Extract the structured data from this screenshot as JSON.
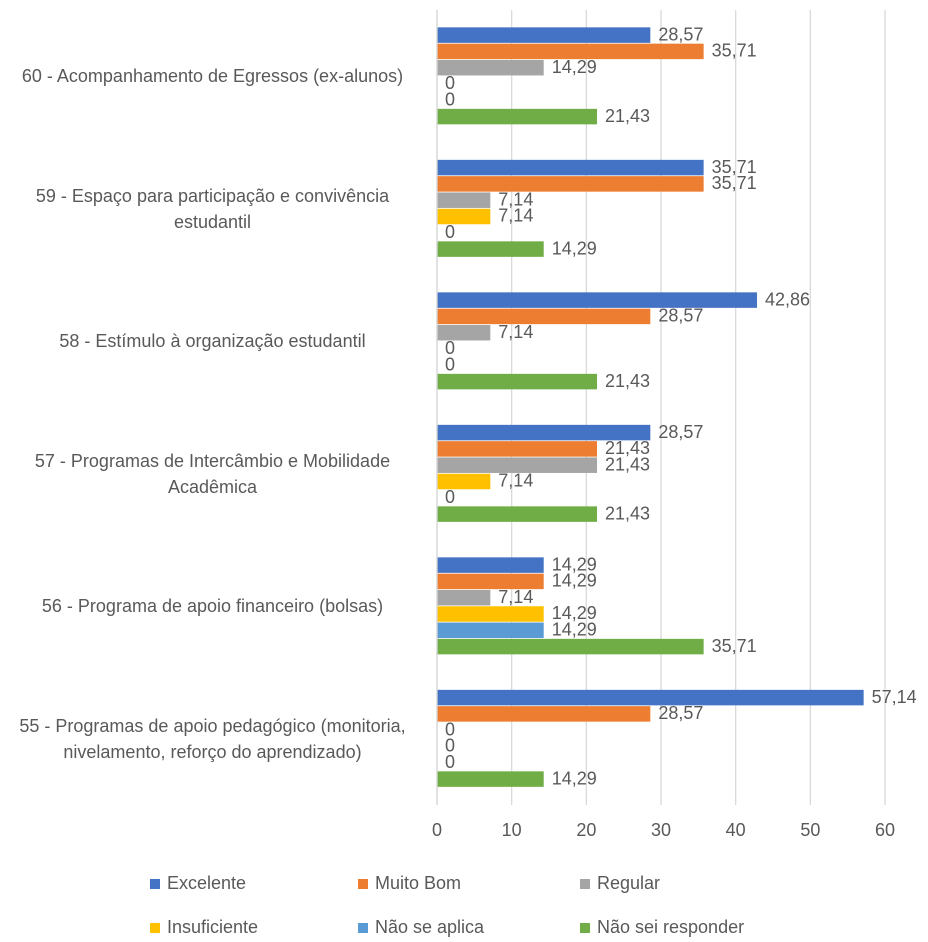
{
  "chart_data": {
    "type": "hbar",
    "categories": [
      "60 - Acompanhamento de Egressos (ex-alunos)",
      "59 - Espaço para participação e convivência estudantil",
      "58 - Estímulo à organização estudantil",
      "57 - Programas de Intercâmbio e Mobilidade Acadêmica",
      "56 - Programa de apoio financeiro (bolsas)",
      "55 - Programas de apoio pedagógico (monitoria, nivelamento, reforço do aprendizado)"
    ],
    "series": [
      {
        "name": "Excelente",
        "color": "#4472c4",
        "values": [
          28.57,
          35.71,
          42.86,
          28.57,
          14.29,
          57.14
        ],
        "value_labels": [
          "28,57",
          "35,71",
          "42,86",
          "28,57",
          "14,29",
          "57,14"
        ]
      },
      {
        "name": "Muito Bom",
        "color": "#ed7d31",
        "values": [
          35.71,
          35.71,
          28.57,
          21.43,
          14.29,
          28.57
        ],
        "value_labels": [
          "35,71",
          "35,71",
          "28,57",
          "21,43",
          "14,29",
          "28,57"
        ]
      },
      {
        "name": "Regular",
        "color": "#a5a5a5",
        "values": [
          14.29,
          7.14,
          7.14,
          21.43,
          7.14,
          0
        ],
        "value_labels": [
          "14,29",
          "7,14",
          "7,14",
          "21,43",
          "7,14",
          "0"
        ]
      },
      {
        "name": "Insuficiente",
        "color": "#ffc000",
        "values": [
          0,
          7.14,
          0,
          7.14,
          14.29,
          0
        ],
        "value_labels": [
          "0",
          "7,14",
          "0",
          "7,14",
          "14,29",
          "0"
        ]
      },
      {
        "name": "Não se aplica",
        "color": "#5b9bd5",
        "values": [
          0,
          0,
          0,
          0,
          14.29,
          0
        ],
        "value_labels": [
          "0",
          "0",
          "0",
          "0",
          "14,29",
          "0"
        ]
      },
      {
        "name": "Não sei responder",
        "color": "#70ad47",
        "values": [
          21.43,
          14.29,
          21.43,
          21.43,
          35.71,
          14.29
        ],
        "value_labels": [
          "21,43",
          "14,29",
          "21,43",
          "21,43",
          "35,71",
          "14,29"
        ]
      }
    ],
    "xlim": [
      0,
      60
    ],
    "xticks": [
      0,
      10,
      20,
      30,
      40,
      50,
      60
    ],
    "grid": true
  }
}
